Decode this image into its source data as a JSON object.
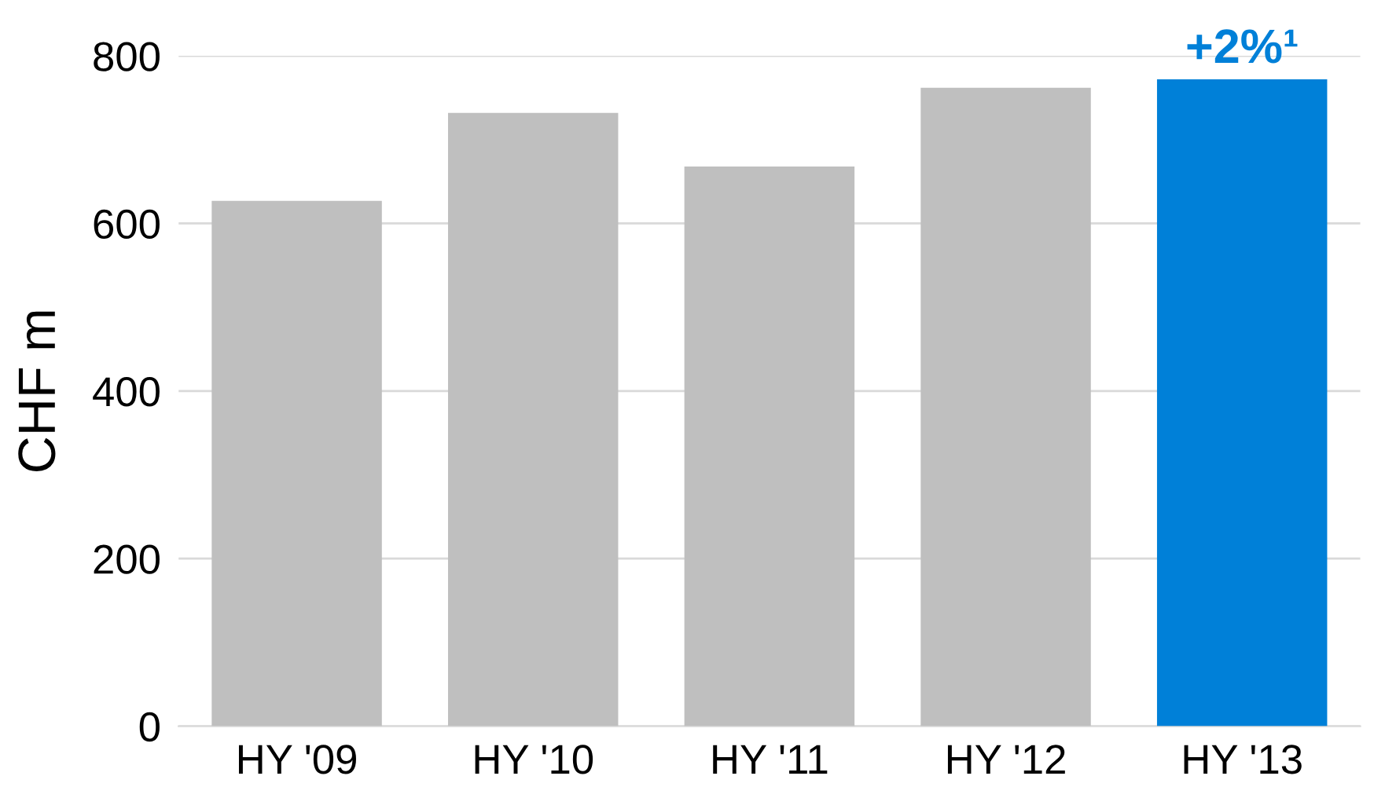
{
  "chart_data": {
    "type": "bar",
    "ylabel": "CHF m",
    "categories": [
      "HY '09",
      "HY '10",
      "HY '11",
      "HY '12",
      "HY '13"
    ],
    "values": [
      627,
      732,
      668,
      762,
      772
    ],
    "colors": [
      "#bfbfbf",
      "#bfbfbf",
      "#bfbfbf",
      "#bfbfbf",
      "#0080d8"
    ],
    "ylim": [
      0,
      800
    ],
    "yticks": [
      0,
      200,
      400,
      600,
      800
    ],
    "grid": "y",
    "annotations": [
      {
        "text": "+2%¹",
        "x": "HY '13",
        "y": 772
      }
    ]
  }
}
